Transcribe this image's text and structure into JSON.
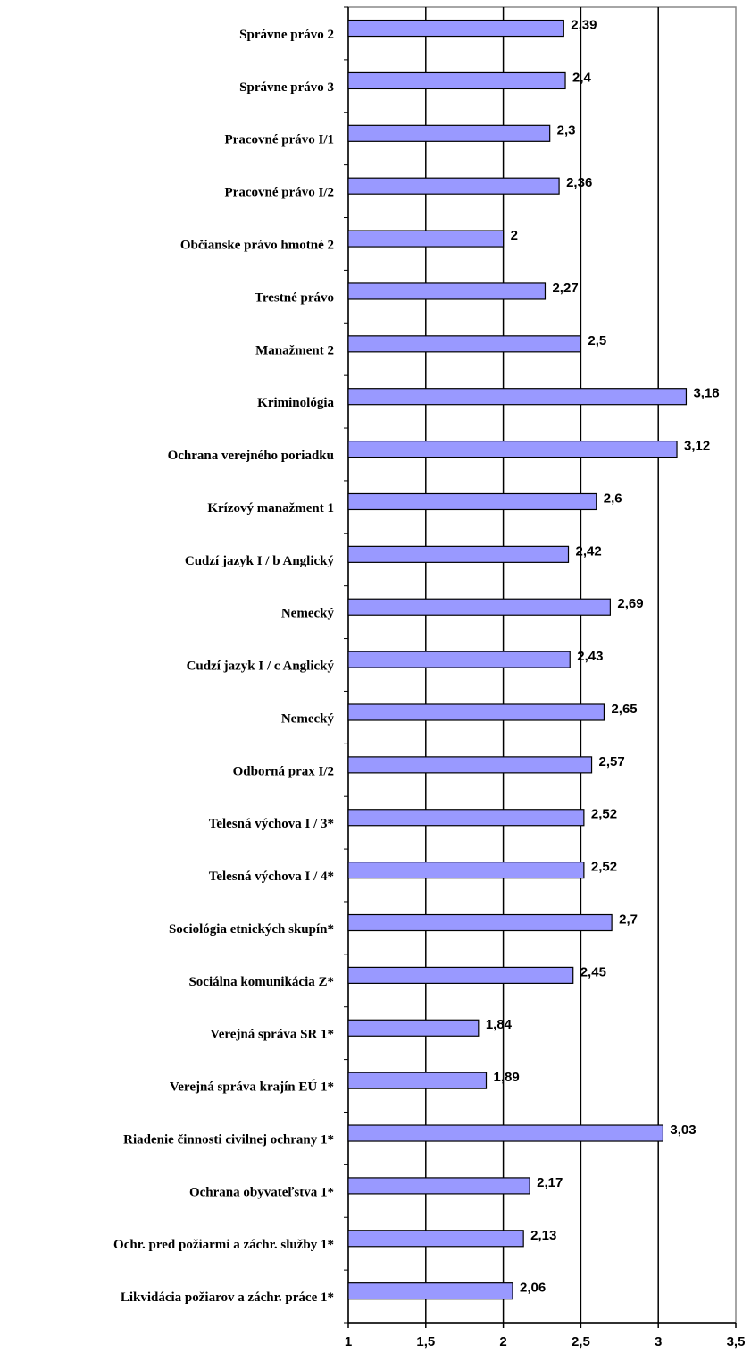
{
  "chart_data": {
    "type": "bar",
    "categories": [
      "Správne právo 2",
      "Správne právo 3",
      "Pracovné právo I/1",
      "Pracovné právo I/2",
      "Občianske právo hmotné 2",
      "Trestné právo",
      "Manažment 2",
      "Kriminológia",
      "Ochrana verejného poriadku",
      "Krízový manažment 1",
      "Cudzí jazyk I / b Anglický",
      "Nemecký",
      "Cudzí jazyk I / c Anglický",
      "Nemecký",
      "Odborná prax I/2",
      "Telesná výchova I / 3*",
      "Telesná výchova I / 4*",
      "Sociológia etnických skupín*",
      "Sociálna komunikácia Z*",
      "Verejná správa SR 1*",
      "Verejná správa krajín EÚ 1*",
      "Riadenie činnosti civilnej ochrany 1*",
      "Ochrana obyvateľstva 1*",
      "Ochr. pred požiarmi a záchr. služby 1*",
      "Likvidácia požiarov a záchr. práce 1*"
    ],
    "values": [
      2.39,
      2.4,
      2.3,
      2.36,
      2,
      2.27,
      2.5,
      3.18,
      3.12,
      2.6,
      2.42,
      2.69,
      2.43,
      2.65,
      2.57,
      2.52,
      2.52,
      2.7,
      2.45,
      1.84,
      1.89,
      3.03,
      2.17,
      2.13,
      2.06
    ],
    "value_labels": [
      "2,39",
      "2,4",
      "2,3",
      "2,36",
      "2",
      "2,27",
      "2,5",
      "3,18",
      "3,12",
      "2,6",
      "2,42",
      "2,69",
      "2,43",
      "2,65",
      "2,57",
      "2,52",
      "2,52",
      "2,7",
      "2,45",
      "1,84",
      "1,89",
      "3,03",
      "2,17",
      "2,13",
      "2,06"
    ],
    "color": "#9999ff",
    "xlim": [
      1,
      3.5
    ],
    "xticks": [
      1,
      {
        "value": 1.5,
        "label": "1,5"
      },
      2,
      {
        "value": 2.5,
        "label": "2,5"
      },
      3,
      {
        "value": 3.5,
        "label": "3,5"
      }
    ],
    "grid": true
  }
}
